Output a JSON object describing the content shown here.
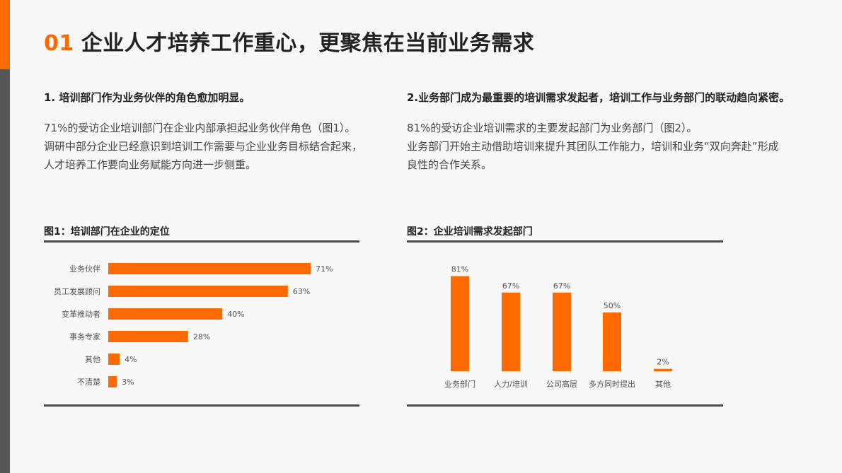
{
  "page": {
    "title_number": "01",
    "title_text": "企业人才培养工作重心，更聚焦在当前业务需求",
    "colors": {
      "accent": "#ff6a00",
      "side_bar": "#555555",
      "rule": "#4a4a4a"
    }
  },
  "left": {
    "heading": "1. 培训部门作为业务伙伴的角色愈加明显。",
    "paragraph": "71%的受访企业培训部门在企业内部承担起业务伙伴角色（图1）。调研中部分企业已经意识到培训工作需要与企业业务目标结合起来，人才培养工作要向业务赋能方向进一步侧重。",
    "figure_title": "图1：培训部门在企业的定位"
  },
  "right": {
    "heading": "2.业务部门成为最重要的培训需求发起者，培训工作与业务部门的联动趋向紧密。",
    "paragraph_1": "81%的受访企业培训需求的主要发起部门为业务部门（图2）。",
    "paragraph_2": "业务部门开始主动借助培训来提升其团队工作能力，培训和业务“双向奔赴”形成良性的合作关系。",
    "figure_title": "图2：企业培训需求发起部门"
  },
  "chart_data": [
    {
      "type": "bar",
      "orientation": "horizontal",
      "title": "图1：培训部门在企业的定位",
      "categories": [
        "业务伙伴",
        "员工发展顾问",
        "变革推动者",
        "事务专家",
        "其他",
        "不清楚"
      ],
      "values": [
        71,
        63,
        40,
        28,
        4,
        3
      ],
      "value_labels": [
        "71%",
        "63%",
        "40%",
        "28%",
        "4%",
        "3%"
      ],
      "unit": "%",
      "xlim": [
        0,
        100
      ],
      "grid": false,
      "color": "#ff6a00"
    },
    {
      "type": "bar",
      "orientation": "vertical",
      "title": "图2：企业培训需求发起部门",
      "categories": [
        "业务部门",
        "人力/培训",
        "公司高层",
        "多方同时提出",
        "其他"
      ],
      "values": [
        81,
        67,
        67,
        50,
        2
      ],
      "value_labels": [
        "81%",
        "67%",
        "67%",
        "50%",
        "2%"
      ],
      "unit": "%",
      "ylim": [
        0,
        100
      ],
      "grid": false,
      "color": "#ff6a00"
    }
  ]
}
